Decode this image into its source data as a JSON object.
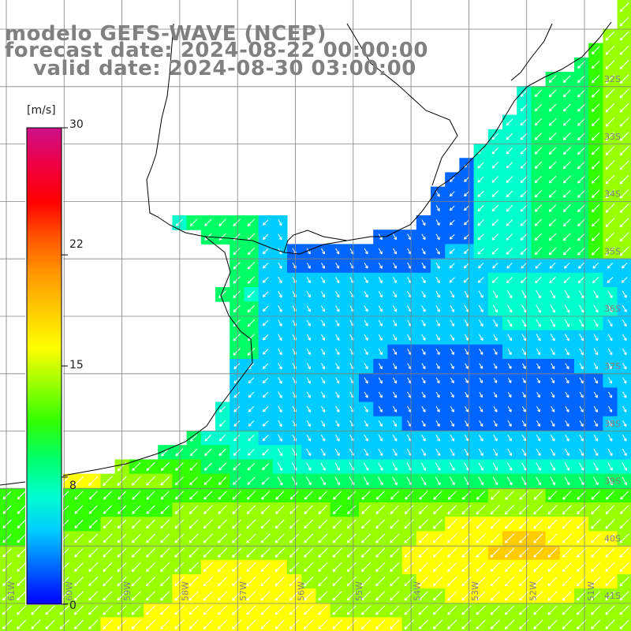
{
  "title": {
    "model": "modelo GEFS-WAVE (NCEP)",
    "forecast": "forecast date: 2024-08-22 00:00:00",
    "valid": "valid date: 2024-08-30 03:00:00"
  },
  "colorbar": {
    "unit": "[m/s]",
    "ticks": [
      "30",
      "22",
      "15",
      "8",
      "0"
    ],
    "tick_values": [
      30,
      22,
      15,
      8,
      0
    ],
    "colors": [
      "#0000ff",
      "#0066ff",
      "#00ccff",
      "#00ffcc",
      "#00ff66",
      "#33ff00",
      "#99ff00",
      "#ffff00",
      "#ffcc00",
      "#ff9900",
      "#ff5500",
      "#ff0000",
      "#ee0044",
      "#cc1188"
    ],
    "range": [
      0,
      30
    ]
  },
  "chart_data": {
    "type": "heatmap",
    "variable": "wind speed",
    "unit": "m/s",
    "lon_labels": [
      "61W",
      "60W",
      "59W",
      "58W",
      "57W",
      "56W",
      "55W",
      "54W",
      "53W",
      "52W",
      "51W"
    ],
    "lat_labels": [
      "32S",
      "33S",
      "34S",
      "35S",
      "36S",
      "37S",
      "38S",
      "39S",
      "40S",
      "41S"
    ],
    "lon_range": [
      -61,
      -50.8
    ],
    "lat_range": [
      -41.2,
      -31
    ],
    "region_speeds_ms": [
      {
        "region": "north-east coastal waters",
        "speed": 4
      },
      {
        "region": "north-east offshore",
        "speed": 10
      },
      {
        "region": "central estuary and shelf",
        "speed": 3
      },
      {
        "region": "south-west near coast",
        "speed": 8
      },
      {
        "region": "southern band near 39.5S",
        "speed": 13
      },
      {
        "region": "far south-east near 40S",
        "speed": 17
      }
    ],
    "vector_direction": "predominantly toward the south-west over most of the domain, toward the north-west in the central low-speed area"
  }
}
